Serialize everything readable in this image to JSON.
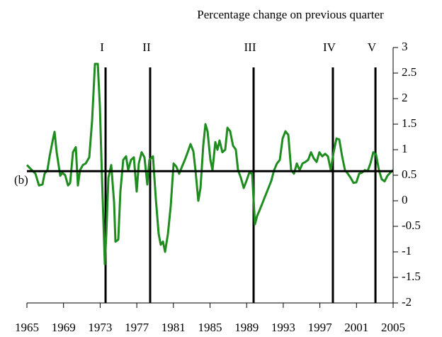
{
  "chart_data": {
    "type": "line",
    "title": "Percentage change on previous quarter",
    "x": [
      1965.0,
      1965.54,
      1965.93,
      1966.32,
      1966.7,
      1966.93,
      1967.24,
      1967.48,
      1967.86,
      1968.02,
      1968.25,
      1968.64,
      1968.87,
      1969.18,
      1969.49,
      1969.72,
      1970.03,
      1970.34,
      1970.57,
      1970.8,
      1971.11,
      1971.42,
      1971.81,
      1972.12,
      1972.43,
      1972.74,
      1972.97,
      1973.2,
      1973.51,
      1973.67,
      1973.9,
      1974.21,
      1974.52,
      1974.67,
      1974.98,
      1975.21,
      1975.52,
      1975.83,
      1976.06,
      1976.37,
      1976.68,
      1976.99,
      1977.22,
      1977.53,
      1977.84,
      1978.15,
      1978.38,
      1978.77,
      1979.08,
      1979.39,
      1979.62,
      1979.86,
      1980.09,
      1980.4,
      1980.71,
      1981.02,
      1981.32,
      1981.63,
      1981.94,
      1982.25,
      1982.56,
      1982.87,
      1983.18,
      1983.41,
      1983.72,
      1983.96,
      1984.26,
      1984.5,
      1984.73,
      1985.04,
      1985.27,
      1985.58,
      1985.81,
      1986.04,
      1986.35,
      1986.66,
      1986.9,
      1987.2,
      1987.51,
      1987.82,
      1988.06,
      1988.37,
      1988.68,
      1988.98,
      1989.29,
      1989.6,
      1989.91,
      1990.14,
      1990.45,
      1990.76,
      1991.07,
      1991.38,
      1991.69,
      1992.0,
      1992.31,
      1992.62,
      1992.93,
      1993.24,
      1993.55,
      1993.86,
      1994.17,
      1994.48,
      1994.79,
      1995.1,
      1995.41,
      1995.72,
      1996.03,
      1996.33,
      1996.64,
      1996.95,
      1997.26,
      1997.57,
      1997.88,
      1998.19,
      1998.5,
      1998.81,
      1999.12,
      1999.43,
      1999.74,
      2000.05,
      2000.36,
      2000.67,
      2000.98,
      2001.29,
      2001.6,
      2001.91,
      2002.21,
      2002.52,
      2002.83,
      2003.14,
      2003.45,
      2003.76,
      2004.07,
      2004.38,
      2004.69,
      2005.0
    ],
    "series": [
      {
        "color": "#1e8c1e",
        "values": [
          0.7,
          0.6,
          0.53,
          0.3,
          0.32,
          0.53,
          0.6,
          0.87,
          1.22,
          1.35,
          0.95,
          0.49,
          0.55,
          0.5,
          0.3,
          0.35,
          0.95,
          1.05,
          0.3,
          0.6,
          0.7,
          0.73,
          0.85,
          1.57,
          2.68,
          2.68,
          1.85,
          0.45,
          -1.24,
          -0.65,
          0.45,
          0.7,
          -0.03,
          -0.8,
          -0.76,
          0.18,
          0.8,
          0.87,
          0.6,
          0.8,
          0.85,
          0.18,
          0.73,
          0.95,
          0.85,
          0.32,
          0.8,
          0.87,
          0.04,
          -0.65,
          -0.86,
          -0.8,
          -1.0,
          -0.65,
          -0.1,
          0.73,
          0.67,
          0.53,
          0.67,
          0.8,
          0.95,
          1.11,
          0.97,
          0.6,
          0,
          0.25,
          1.08,
          1.5,
          1.36,
          0.8,
          0.6,
          1.15,
          1.0,
          1.18,
          0.95,
          1.0,
          1.43,
          1.36,
          1.08,
          1.0,
          0.6,
          0.45,
          0.25,
          0.39,
          0.55,
          0.53,
          -0.46,
          -0.3,
          -0.17,
          -0.03,
          0.11,
          0.25,
          0.39,
          0.6,
          0.73,
          0.8,
          1.22,
          1.36,
          1.29,
          0.6,
          0.53,
          0.73,
          0.6,
          0.73,
          0.76,
          0.8,
          0.95,
          0.83,
          0.76,
          0.95,
          0.87,
          0.92,
          0.87,
          0.6,
          0.95,
          1.22,
          1.2,
          0.87,
          0.6,
          0.53,
          0.45,
          0.35,
          0.36,
          0.53,
          0.55,
          0.6,
          0.58,
          0.73,
          0.95,
          0.9,
          0.6,
          0.42,
          0.38,
          0.49,
          0.55,
          0.6
        ]
      }
    ],
    "xlim": [
      1965,
      2005
    ],
    "xticks": [
      1965,
      1969,
      1973,
      1977,
      1981,
      1985,
      1989,
      1993,
      1997,
      2001,
      2005
    ],
    "ylim": [
      -2,
      3
    ],
    "yticks": [
      3,
      2.5,
      2,
      1.5,
      1,
      0.5,
      0,
      -0.5,
      -1,
      -1.5,
      -2
    ],
    "reference_line": {
      "value": 0.58,
      "label": "(b)"
    },
    "periods": [
      {
        "label": "I",
        "x": 1973.59
      },
      {
        "label": "II",
        "x": 1978.46
      },
      {
        "label": "III",
        "x": 1989.76
      },
      {
        "label": "IV",
        "x": 1998.42
      },
      {
        "label": "V",
        "x": 2003.07
      }
    ]
  }
}
